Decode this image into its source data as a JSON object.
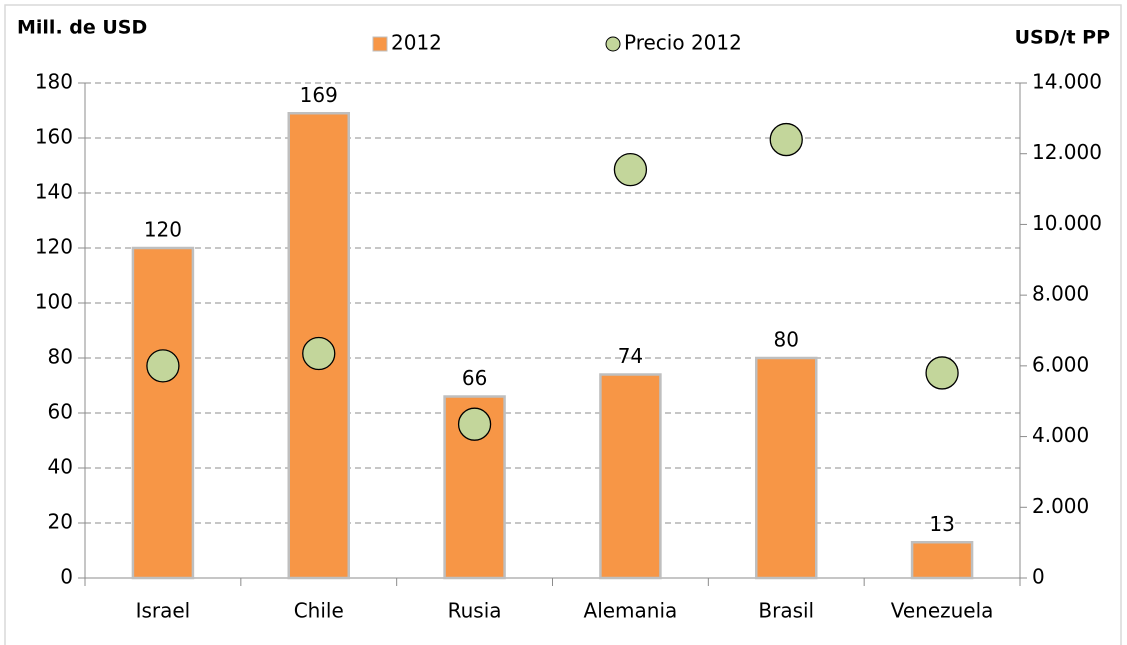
{
  "chart_data": {
    "type": "bar",
    "y_label": "Mill. de USD",
    "y2_label": "USD/t PP",
    "categories": [
      "Israel",
      "Chile",
      "Rusia",
      "Alemania",
      "Brasil",
      "Venezuela"
    ],
    "series": [
      {
        "name": "2012",
        "type": "bar",
        "color": "#f79646",
        "values": [
          120,
          169,
          66,
          74,
          80,
          13
        ]
      },
      {
        "name": "Precio 2012",
        "type": "scatter",
        "axis": "y2",
        "color": "#c3d69b",
        "values": [
          6000,
          6350,
          4350,
          11550,
          12400,
          5800
        ]
      }
    ],
    "ylim": [
      0,
      180
    ],
    "yticks": [
      0,
      20,
      40,
      60,
      80,
      100,
      120,
      140,
      160,
      180
    ],
    "y2lim": [
      0,
      14000
    ],
    "y2ticks": [
      0,
      {
        "value": 2000,
        "label": "2.000"
      },
      {
        "value": 4000,
        "label": "4.000"
      },
      {
        "value": 6000,
        "label": "6.000"
      },
      {
        "value": 8000,
        "label": "8.000"
      },
      {
        "value": 10000,
        "label": "10.000"
      },
      {
        "value": 12000,
        "label": "12.000"
      },
      {
        "value": 14000,
        "label": "14.000"
      }
    ],
    "grid": true,
    "legend": "top"
  }
}
